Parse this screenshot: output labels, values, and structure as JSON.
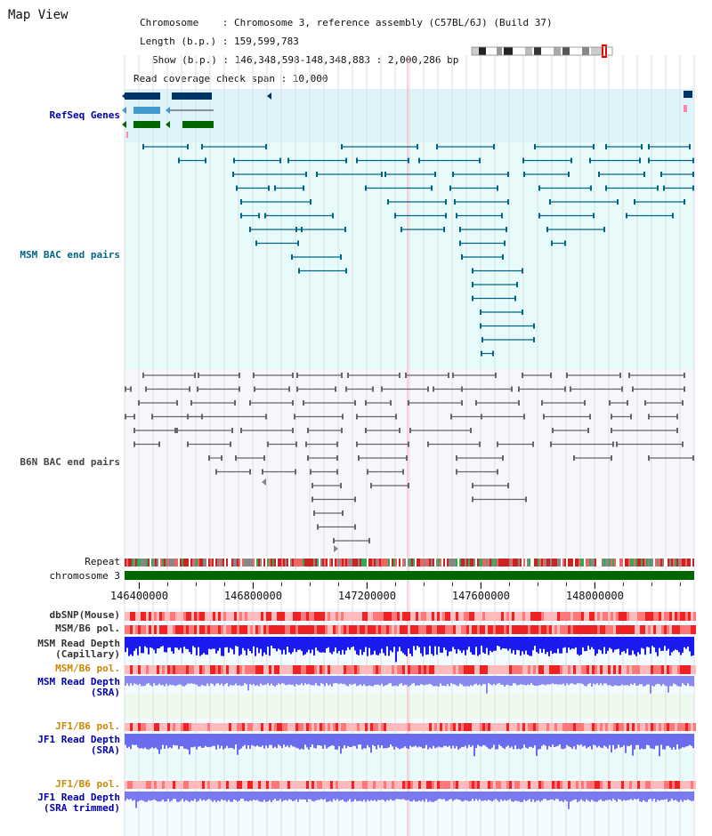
{
  "page": {
    "title": "Map View"
  },
  "info": {
    "chromosome_line": "Chromosome    : Chromosome 3, reference assembly (C57BL/6J) (Build 37)",
    "length_line": "Length (b.p.) : 159,599,783",
    "show_line": "Show (b.p.) : 146,348,598-148,348,883 : 2,000,286 bp",
    "span_line": "Read coverage check span : 10,000"
  },
  "tracks": {
    "refseq": {
      "label": "RefSeq Genes",
      "color": "#0000aa"
    },
    "msm_bac": {
      "label": "MSM BAC end pairs",
      "color": "#006688"
    },
    "b6n_bac": {
      "label": "B6N BAC end pairs",
      "color": "#444444"
    },
    "repeat": {
      "label": "Repeat"
    },
    "chromosome": {
      "label": "chromosome 3",
      "color": "#006600"
    },
    "dbsnp": {
      "label": "dbSNP(Mouse)"
    },
    "msm_b6_pol_1": {
      "label": "MSM/B6 pol."
    },
    "msm_read_depth_cap": {
      "label": "MSM Read Depth",
      "sub": "(Capillary)"
    },
    "msm_b6_pol_2": {
      "label": "MSM/B6 pol."
    },
    "msm_read_depth_sra": {
      "label": "MSM Read Depth",
      "sub": "(SRA)"
    },
    "jf1_b6_pol_1": {
      "label": "JF1/B6 pol."
    },
    "jf1_read_depth_sra": {
      "label": "JF1 Read Depth",
      "sub": "(SRA)"
    },
    "jf1_b6_pol_2": {
      "label": "JF1/B6 pol."
    },
    "jf1_read_depth_trim": {
      "label": "JF1 Read Depth",
      "sub": "(SRA trimmed)"
    }
  },
  "axis": {
    "ticks": [
      "146400000",
      "146800000",
      "147200000",
      "147600000",
      "148000000"
    ],
    "tick_values": [
      146400000,
      146800000,
      147200000,
      147600000,
      148000000
    ],
    "start": 146348598,
    "end": 148348883
  },
  "colors": {
    "refseq_bg": "#dff3fb",
    "msm_bg": "#e8fbfb",
    "b6n_bg": "#f6f6fc",
    "pol_red": "#ee3333",
    "pol_pink": "#ff9999",
    "depth_blue": "#2222dd",
    "depth_light": "#8888ee",
    "chrom_green": "#006600",
    "navy": "#0000aa",
    "orange": "#cc8800"
  }
}
